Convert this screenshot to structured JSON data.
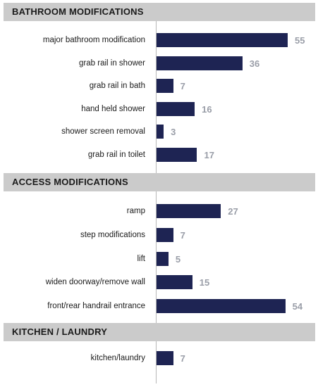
{
  "chart_data": {
    "type": "bar",
    "orientation": "horizontal",
    "sections": [
      {
        "title": "BATHROOM MODIFICATIONS",
        "categories": [
          "major bathroom modification",
          "grab rail in shower",
          "grab rail in bath",
          "hand held shower",
          "shower screen removal",
          "grab rail in toilet"
        ],
        "values": [
          55,
          36,
          7,
          16,
          3,
          17
        ]
      },
      {
        "title": "ACCESS MODIFICATIONS",
        "categories": [
          "ramp",
          "step modifications",
          "lift",
          "widen doorway/remove wall",
          "front/rear handrail entrance"
        ],
        "values": [
          27,
          7,
          5,
          15,
          54
        ]
      },
      {
        "title": "KITCHEN / LAUNDRY",
        "categories": [
          "kitchen/laundry"
        ],
        "values": [
          7
        ]
      }
    ],
    "xlim": [
      0,
      55
    ],
    "bar_color": "#1e2453",
    "section_header_color": "#cbcbcb",
    "value_label_color": "#9a9ea8",
    "grid": false,
    "legend": "none"
  }
}
